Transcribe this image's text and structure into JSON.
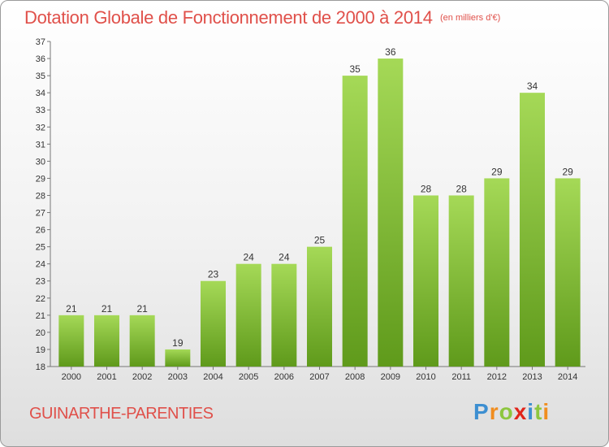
{
  "title": "Dotation Globale de Fonctionnement de 2000 à 2014",
  "unit_note": "(en milliers d'€)",
  "commune": "GUINARTHE-PARENTIES",
  "logo": {
    "text": "Proxiti",
    "colors": [
      "#3d8fd1",
      "#f08d1f",
      "#8dc63f",
      "#e1251b"
    ]
  },
  "colors": {
    "title": "#e0504a",
    "bar_light": "#a5d957",
    "bar_dark": "#5f9a1b",
    "label": "#333333"
  },
  "chart_data": {
    "type": "bar",
    "title": "Dotation Globale de Fonctionnement de 2000 à 2014",
    "subtitle": "(en milliers d'€)",
    "xlabel": "",
    "ylabel": "",
    "categories": [
      "2000",
      "2001",
      "2002",
      "2003",
      "2004",
      "2005",
      "2006",
      "2007",
      "2008",
      "2009",
      "2010",
      "2011",
      "2012",
      "2013",
      "2014"
    ],
    "values": [
      21,
      21,
      21,
      19,
      23,
      24,
      24,
      25,
      35,
      36,
      28,
      28,
      29,
      34,
      29
    ],
    "ylim": [
      18,
      37
    ],
    "yticks": [
      18,
      19,
      20,
      21,
      22,
      23,
      24,
      25,
      26,
      27,
      28,
      29,
      30,
      31,
      32,
      33,
      34,
      35,
      36,
      37
    ],
    "grid": false,
    "data_labels": true
  }
}
